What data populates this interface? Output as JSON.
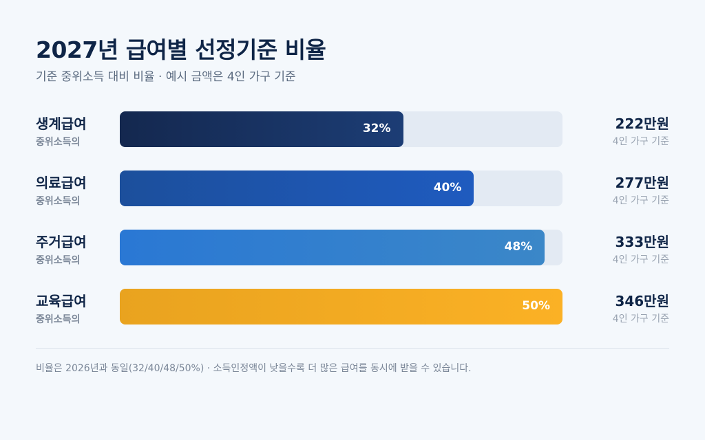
{
  "title": "2027년 급여별 선정기준 비율",
  "subtitle": "기준 중위소득 대비 비율 · 예시 금액은 4인 가구 기준",
  "footnote": "비율은 2026년과 동일(32/40/48/50%) · 소득인정액이 낮을수록 더 많은 급여를 동시에 받을 수 있습니다.",
  "colors": {
    "bar1": [
      "#14284f",
      "#1c3d75"
    ],
    "bar2": [
      "#1c4f9c",
      "#1f5bbf"
    ],
    "bar3": [
      "#2a78d4",
      "#3b87c8"
    ],
    "bar4": [
      "#e9a31f",
      "#fbb125"
    ],
    "track": "#e3eaf3"
  },
  "chart_data": {
    "type": "bar",
    "orientation": "horizontal",
    "unit": "%",
    "xlim": [
      0,
      50
    ],
    "categories": [
      "생계급여",
      "의료급여",
      "주거급여",
      "교육급여"
    ],
    "category_sublabel": "중위소득의",
    "values": [
      32,
      40,
      48,
      50
    ],
    "value_labels": [
      "32%",
      "40%",
      "48%",
      "50%"
    ],
    "amounts": [
      "222만원",
      "277만원",
      "333만원",
      "346만원"
    ],
    "amount_sublabel": "4인 가구 기준"
  }
}
